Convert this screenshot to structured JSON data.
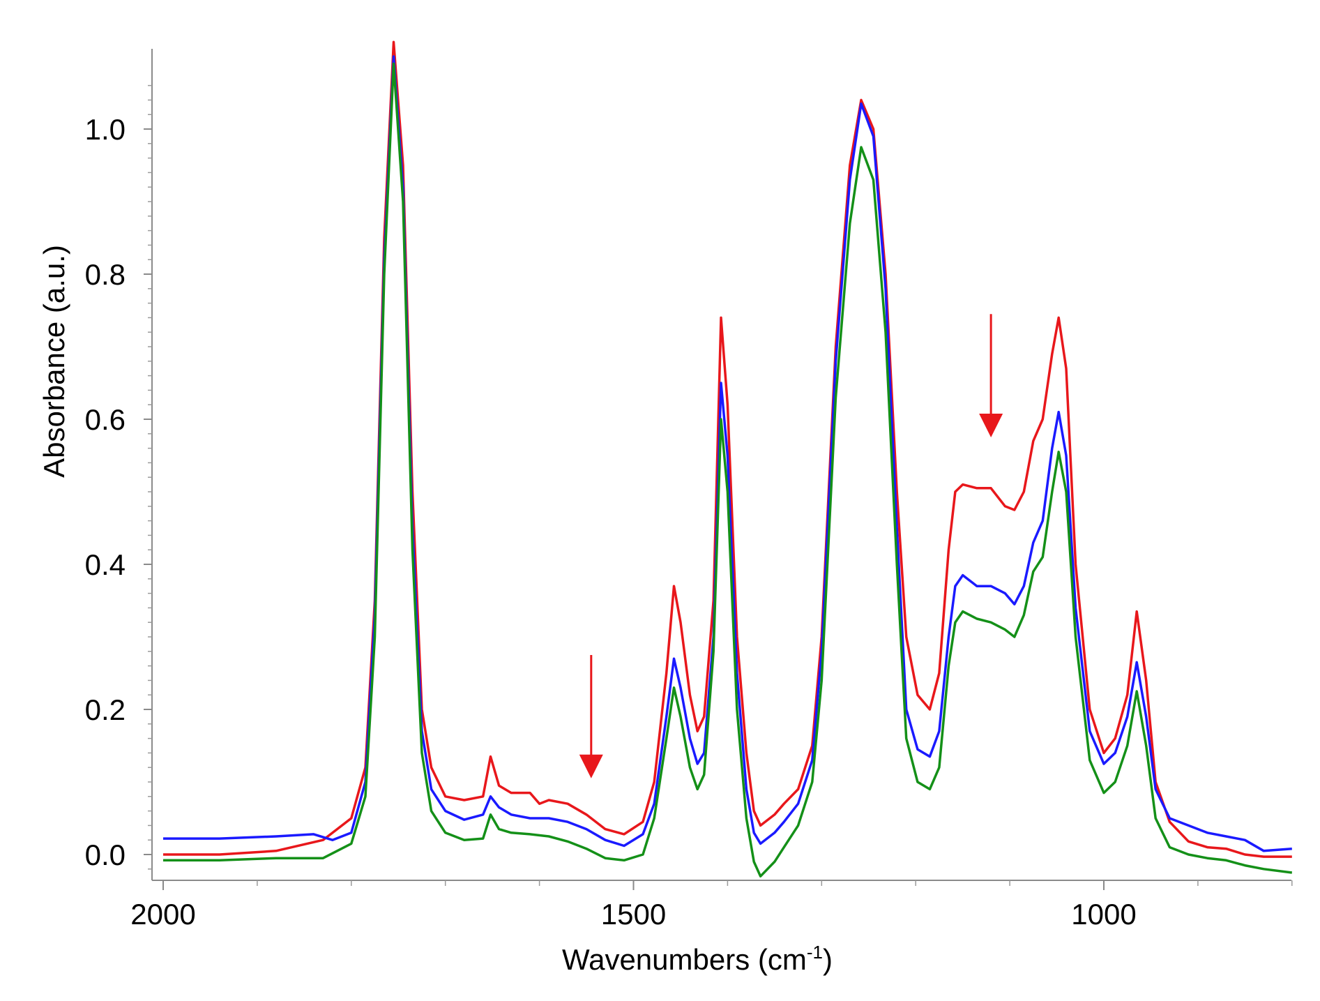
{
  "chart_data": {
    "type": "line",
    "title": "",
    "xlabel": "Wavenumbers (cm",
    "xlabel_sup": "-1",
    "xlabel_end": ")",
    "ylabel": "Absorbance (a.u.)",
    "xlim": [
      2000,
      800
    ],
    "x_reversed": true,
    "ylim": [
      -0.03,
      1.1
    ],
    "x_ticks": [
      2000,
      1500,
      1000
    ],
    "x_tick_labels": [
      "2000",
      "1500",
      "1000"
    ],
    "y_ticks": [
      0.0,
      0.2,
      0.4,
      0.6,
      0.8,
      1.0
    ],
    "y_tick_labels": [
      "0.0",
      "0.2",
      "0.4",
      "0.6",
      "0.8",
      "1.0"
    ],
    "grid": false,
    "legend": "none",
    "colors": {
      "red": "#e8171b",
      "blue": "#1a1aff",
      "green": "#149018"
    },
    "series": [
      {
        "color": "#e8171b",
        "points": [
          [
            2000,
            0.0
          ],
          [
            1940,
            0.0
          ],
          [
            1880,
            0.005
          ],
          [
            1830,
            0.02
          ],
          [
            1800,
            0.05
          ],
          [
            1785,
            0.12
          ],
          [
            1775,
            0.35
          ],
          [
            1765,
            0.85
          ],
          [
            1755,
            1.12
          ],
          [
            1745,
            0.95
          ],
          [
            1735,
            0.5
          ],
          [
            1725,
            0.2
          ],
          [
            1715,
            0.12
          ],
          [
            1700,
            0.08
          ],
          [
            1680,
            0.075
          ],
          [
            1660,
            0.08
          ],
          [
            1652,
            0.135
          ],
          [
            1643,
            0.095
          ],
          [
            1630,
            0.085
          ],
          [
            1610,
            0.085
          ],
          [
            1600,
            0.07
          ],
          [
            1590,
            0.075
          ],
          [
            1570,
            0.07
          ],
          [
            1550,
            0.055
          ],
          [
            1530,
            0.035
          ],
          [
            1510,
            0.028
          ],
          [
            1490,
            0.045
          ],
          [
            1478,
            0.1
          ],
          [
            1465,
            0.25
          ],
          [
            1457,
            0.37
          ],
          [
            1450,
            0.32
          ],
          [
            1440,
            0.22
          ],
          [
            1432,
            0.17
          ],
          [
            1425,
            0.19
          ],
          [
            1415,
            0.35
          ],
          [
            1407,
            0.74
          ],
          [
            1400,
            0.62
          ],
          [
            1390,
            0.3
          ],
          [
            1380,
            0.14
          ],
          [
            1372,
            0.06
          ],
          [
            1365,
            0.04
          ],
          [
            1350,
            0.055
          ],
          [
            1340,
            0.07
          ],
          [
            1325,
            0.09
          ],
          [
            1310,
            0.15
          ],
          [
            1300,
            0.3
          ],
          [
            1285,
            0.7
          ],
          [
            1270,
            0.95
          ],
          [
            1258,
            1.04
          ],
          [
            1245,
            1.0
          ],
          [
            1232,
            0.8
          ],
          [
            1220,
            0.5
          ],
          [
            1210,
            0.3
          ],
          [
            1198,
            0.22
          ],
          [
            1185,
            0.2
          ],
          [
            1175,
            0.25
          ],
          [
            1165,
            0.42
          ],
          [
            1158,
            0.5
          ],
          [
            1150,
            0.51
          ],
          [
            1135,
            0.505
          ],
          [
            1120,
            0.505
          ],
          [
            1105,
            0.48
          ],
          [
            1095,
            0.475
          ],
          [
            1085,
            0.5
          ],
          [
            1075,
            0.57
          ],
          [
            1065,
            0.6
          ],
          [
            1055,
            0.69
          ],
          [
            1048,
            0.74
          ],
          [
            1040,
            0.67
          ],
          [
            1030,
            0.4
          ],
          [
            1015,
            0.2
          ],
          [
            1000,
            0.14
          ],
          [
            988,
            0.16
          ],
          [
            975,
            0.22
          ],
          [
            965,
            0.335
          ],
          [
            955,
            0.24
          ],
          [
            945,
            0.1
          ],
          [
            930,
            0.045
          ],
          [
            910,
            0.018
          ],
          [
            890,
            0.01
          ],
          [
            870,
            0.008
          ],
          [
            850,
            0.0
          ],
          [
            830,
            -0.003
          ],
          [
            800,
            -0.003
          ]
        ]
      },
      {
        "color": "#1a1aff",
        "points": [
          [
            2000,
            0.022
          ],
          [
            1940,
            0.022
          ],
          [
            1880,
            0.025
          ],
          [
            1840,
            0.028
          ],
          [
            1820,
            0.02
          ],
          [
            1800,
            0.03
          ],
          [
            1785,
            0.1
          ],
          [
            1775,
            0.33
          ],
          [
            1765,
            0.82
          ],
          [
            1755,
            1.1
          ],
          [
            1745,
            0.92
          ],
          [
            1735,
            0.45
          ],
          [
            1725,
            0.17
          ],
          [
            1715,
            0.09
          ],
          [
            1700,
            0.06
          ],
          [
            1680,
            0.048
          ],
          [
            1660,
            0.055
          ],
          [
            1652,
            0.08
          ],
          [
            1643,
            0.065
          ],
          [
            1630,
            0.055
          ],
          [
            1610,
            0.05
          ],
          [
            1590,
            0.05
          ],
          [
            1570,
            0.045
          ],
          [
            1550,
            0.035
          ],
          [
            1530,
            0.02
          ],
          [
            1510,
            0.012
          ],
          [
            1490,
            0.028
          ],
          [
            1478,
            0.07
          ],
          [
            1465,
            0.19
          ],
          [
            1457,
            0.27
          ],
          [
            1450,
            0.23
          ],
          [
            1440,
            0.16
          ],
          [
            1432,
            0.125
          ],
          [
            1425,
            0.14
          ],
          [
            1415,
            0.3
          ],
          [
            1407,
            0.65
          ],
          [
            1400,
            0.55
          ],
          [
            1390,
            0.25
          ],
          [
            1380,
            0.09
          ],
          [
            1372,
            0.03
          ],
          [
            1365,
            0.015
          ],
          [
            1350,
            0.03
          ],
          [
            1340,
            0.045
          ],
          [
            1325,
            0.07
          ],
          [
            1310,
            0.13
          ],
          [
            1300,
            0.28
          ],
          [
            1285,
            0.68
          ],
          [
            1270,
            0.93
          ],
          [
            1258,
            1.035
          ],
          [
            1245,
            0.99
          ],
          [
            1232,
            0.78
          ],
          [
            1220,
            0.45
          ],
          [
            1210,
            0.2
          ],
          [
            1198,
            0.145
          ],
          [
            1185,
            0.135
          ],
          [
            1175,
            0.17
          ],
          [
            1165,
            0.3
          ],
          [
            1158,
            0.37
          ],
          [
            1150,
            0.385
          ],
          [
            1135,
            0.37
          ],
          [
            1120,
            0.37
          ],
          [
            1105,
            0.36
          ],
          [
            1095,
            0.345
          ],
          [
            1085,
            0.37
          ],
          [
            1075,
            0.43
          ],
          [
            1065,
            0.46
          ],
          [
            1055,
            0.56
          ],
          [
            1048,
            0.61
          ],
          [
            1040,
            0.55
          ],
          [
            1030,
            0.34
          ],
          [
            1015,
            0.17
          ],
          [
            1000,
            0.125
          ],
          [
            988,
            0.14
          ],
          [
            975,
            0.19
          ],
          [
            965,
            0.265
          ],
          [
            955,
            0.19
          ],
          [
            945,
            0.09
          ],
          [
            930,
            0.05
          ],
          [
            910,
            0.04
          ],
          [
            890,
            0.03
          ],
          [
            870,
            0.025
          ],
          [
            850,
            0.02
          ],
          [
            830,
            0.005
          ],
          [
            800,
            0.008
          ]
        ]
      },
      {
        "color": "#149018",
        "points": [
          [
            2000,
            -0.008
          ],
          [
            1940,
            -0.008
          ],
          [
            1880,
            -0.005
          ],
          [
            1830,
            -0.005
          ],
          [
            1800,
            0.015
          ],
          [
            1785,
            0.08
          ],
          [
            1775,
            0.3
          ],
          [
            1765,
            0.8
          ],
          [
            1755,
            1.09
          ],
          [
            1745,
            0.9
          ],
          [
            1735,
            0.42
          ],
          [
            1725,
            0.14
          ],
          [
            1715,
            0.06
          ],
          [
            1700,
            0.03
          ],
          [
            1680,
            0.02
          ],
          [
            1660,
            0.022
          ],
          [
            1652,
            0.055
          ],
          [
            1643,
            0.035
          ],
          [
            1630,
            0.03
          ],
          [
            1610,
            0.028
          ],
          [
            1590,
            0.025
          ],
          [
            1570,
            0.018
          ],
          [
            1550,
            0.008
          ],
          [
            1530,
            -0.005
          ],
          [
            1510,
            -0.008
          ],
          [
            1490,
            0.0
          ],
          [
            1478,
            0.05
          ],
          [
            1465,
            0.16
          ],
          [
            1457,
            0.23
          ],
          [
            1450,
            0.19
          ],
          [
            1440,
            0.12
          ],
          [
            1432,
            0.09
          ],
          [
            1425,
            0.11
          ],
          [
            1415,
            0.28
          ],
          [
            1407,
            0.6
          ],
          [
            1400,
            0.5
          ],
          [
            1390,
            0.2
          ],
          [
            1380,
            0.05
          ],
          [
            1372,
            -0.01
          ],
          [
            1365,
            -0.03
          ],
          [
            1350,
            -0.01
          ],
          [
            1340,
            0.01
          ],
          [
            1325,
            0.04
          ],
          [
            1310,
            0.1
          ],
          [
            1300,
            0.24
          ],
          [
            1285,
            0.63
          ],
          [
            1270,
            0.87
          ],
          [
            1258,
            0.975
          ],
          [
            1245,
            0.93
          ],
          [
            1232,
            0.72
          ],
          [
            1220,
            0.4
          ],
          [
            1210,
            0.16
          ],
          [
            1198,
            0.1
          ],
          [
            1185,
            0.09
          ],
          [
            1175,
            0.12
          ],
          [
            1165,
            0.26
          ],
          [
            1158,
            0.32
          ],
          [
            1150,
            0.335
          ],
          [
            1135,
            0.325
          ],
          [
            1120,
            0.32
          ],
          [
            1105,
            0.31
          ],
          [
            1095,
            0.3
          ],
          [
            1085,
            0.33
          ],
          [
            1075,
            0.39
          ],
          [
            1065,
            0.41
          ],
          [
            1055,
            0.5
          ],
          [
            1048,
            0.555
          ],
          [
            1040,
            0.5
          ],
          [
            1030,
            0.3
          ],
          [
            1015,
            0.13
          ],
          [
            1000,
            0.085
          ],
          [
            988,
            0.1
          ],
          [
            975,
            0.15
          ],
          [
            965,
            0.225
          ],
          [
            955,
            0.15
          ],
          [
            945,
            0.05
          ],
          [
            930,
            0.01
          ],
          [
            910,
            0.0
          ],
          [
            890,
            -0.005
          ],
          [
            870,
            -0.008
          ],
          [
            850,
            -0.015
          ],
          [
            830,
            -0.02
          ],
          [
            800,
            -0.025
          ]
        ]
      }
    ],
    "annotations": [
      {
        "type": "arrow",
        "x": 1545,
        "y_from": 0.275,
        "y_to": 0.105,
        "color": "#e8171b"
      },
      {
        "type": "arrow",
        "x": 1120,
        "y_from": 0.745,
        "y_to": 0.575,
        "color": "#e8171b"
      }
    ]
  }
}
